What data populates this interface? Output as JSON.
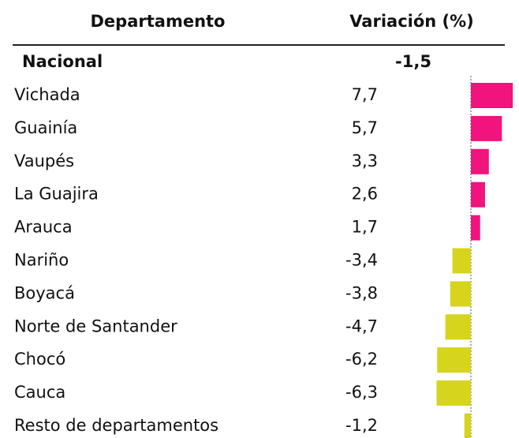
{
  "chart_data": {
    "type": "bar",
    "orientation": "horizontal",
    "headers": [
      "Departamento",
      "Variación (%)"
    ],
    "national": {
      "label": "Nacional",
      "value": -1.5,
      "value_label": "-1,5"
    },
    "categories": [
      "Vichada",
      "Guainía",
      "Vaupés",
      "La Guajira",
      "Arauca",
      "Nariño",
      "Boyacá",
      "Norte de Santander",
      "Chocó",
      "Cauca",
      "Resto de departamentos"
    ],
    "values": [
      7.7,
      5.7,
      3.3,
      2.6,
      1.7,
      -3.4,
      -3.8,
      -4.7,
      -6.2,
      -6.3,
      -1.2
    ],
    "value_labels": [
      "7,7",
      "5,7",
      "3,3",
      "2,6",
      "1,7",
      "-3,4",
      "-3,8",
      "-4,7",
      "-6,2",
      "-6,3",
      "-1,2"
    ],
    "positive_color": "#f0147c",
    "negative_color": "#d6d41c"
  }
}
